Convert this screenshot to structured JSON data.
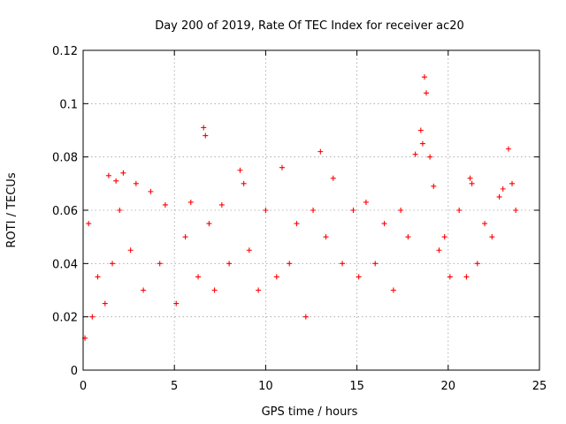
{
  "chart_data": {
    "type": "scatter",
    "title": "Day 200 of 2019, Rate Of TEC Index for receiver ac20",
    "xlabel": "GPS time / hours",
    "ylabel": "ROTI / TECUs",
    "xlim": [
      0,
      25
    ],
    "ylim": [
      0,
      0.12
    ],
    "x_ticks": [
      "0",
      "5",
      "10",
      "15",
      "20",
      "25"
    ],
    "y_ticks": [
      "0",
      "0.02",
      "0.04",
      "0.06",
      "0.08",
      "0.1",
      "0.12"
    ],
    "grid": true,
    "marker": "plus",
    "series_color": "#ff0000",
    "series": [
      {
        "x": [
          0.1,
          0.3,
          0.5,
          0.8,
          1.2,
          1.4,
          1.6,
          1.8,
          2.0,
          2.2,
          2.6,
          2.9,
          3.3,
          3.7,
          4.2,
          4.5,
          5.1,
          5.6,
          5.9,
          6.3,
          6.6,
          6.7,
          6.9,
          7.2,
          7.6,
          8.0,
          8.6,
          8.8,
          9.1,
          9.6,
          10.0,
          10.6,
          10.9,
          11.3,
          11.7,
          12.2,
          12.6,
          13.0,
          13.3,
          13.7,
          14.2,
          14.8,
          15.1,
          15.5,
          16.0,
          16.5,
          17.0,
          17.4,
          17.8,
          18.2,
          18.5,
          18.6,
          18.7,
          18.8,
          19.0,
          19.2,
          19.5,
          19.8,
          20.1,
          20.6,
          21.0,
          21.2,
          21.3,
          21.6,
          22.0,
          22.4,
          22.8,
          23.0,
          23.3,
          23.5,
          23.7
        ],
        "y": [
          0.012,
          0.055,
          0.02,
          0.035,
          0.025,
          0.073,
          0.04,
          0.071,
          0.06,
          0.074,
          0.045,
          0.07,
          0.03,
          0.067,
          0.04,
          0.062,
          0.025,
          0.05,
          0.063,
          0.035,
          0.091,
          0.088,
          0.055,
          0.03,
          0.062,
          0.04,
          0.075,
          0.07,
          0.045,
          0.03,
          0.06,
          0.035,
          0.076,
          0.04,
          0.055,
          0.02,
          0.06,
          0.082,
          0.05,
          0.072,
          0.04,
          0.06,
          0.035,
          0.063,
          0.04,
          0.055,
          0.03,
          0.06,
          0.05,
          0.081,
          0.09,
          0.085,
          0.11,
          0.104,
          0.08,
          0.069,
          0.045,
          0.05,
          0.035,
          0.06,
          0.035,
          0.072,
          0.07,
          0.04,
          0.055,
          0.05,
          0.065,
          0.068,
          0.083,
          0.07,
          0.06
        ]
      }
    ]
  }
}
